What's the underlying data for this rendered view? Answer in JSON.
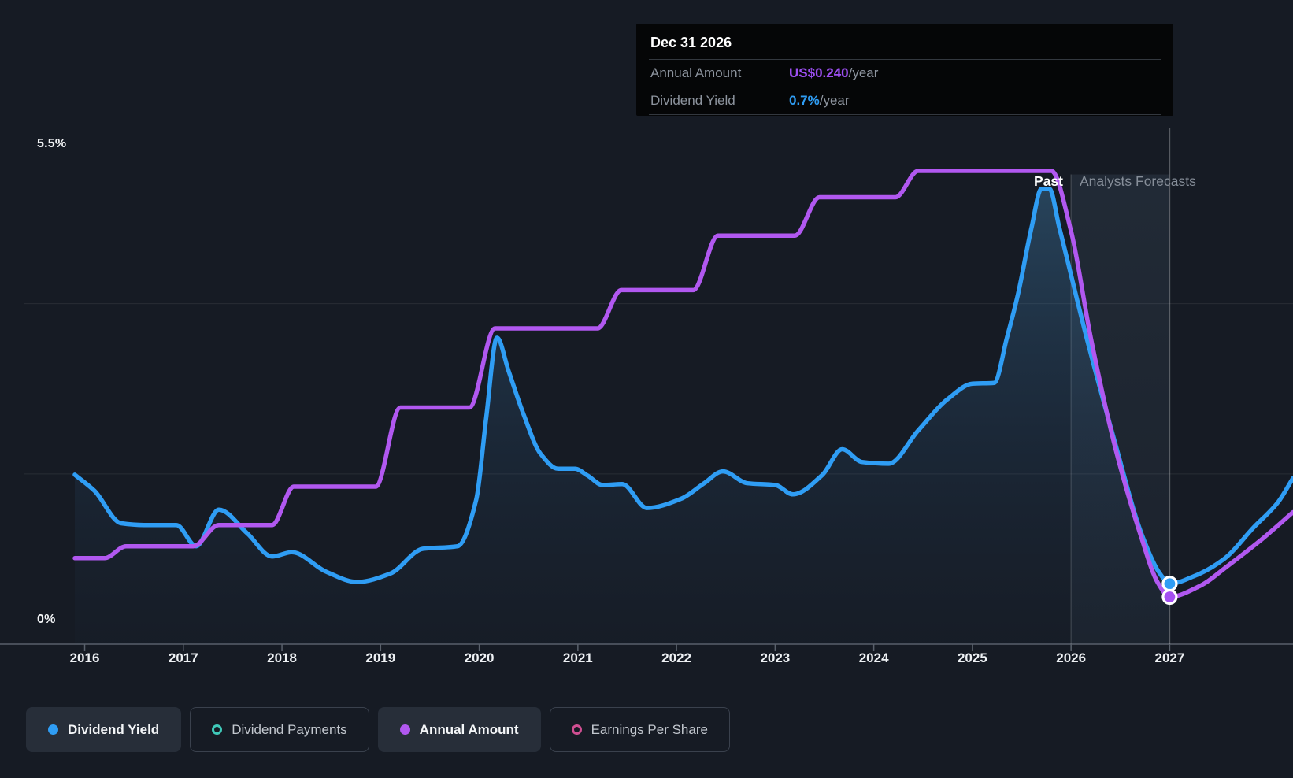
{
  "colors": {
    "background": "#161b24",
    "dividend_yield_line": "#2f9df4",
    "annual_amount_line": "#b158f0",
    "dividend_payments_marker": "#3fc9b9",
    "earnings_per_share_marker": "#d04f92",
    "tooltip_annual_amount_value": "#9d4ff2",
    "tooltip_dividend_yield_value": "#2f9df4",
    "area_fill_base": "#4992c6",
    "axis_line": "#59606b",
    "muted_text": "#8d949e"
  },
  "tooltip": {
    "title": "Dec 31 2026",
    "rows": [
      {
        "label": "Annual Amount",
        "value": "US$0.240",
        "suffix": "/year",
        "value_color": "#9d4ff2"
      },
      {
        "label": "Dividend Yield",
        "value": "0.7%",
        "suffix": "/year",
        "value_color": "#2f9df4"
      }
    ]
  },
  "annotations": {
    "past_label": "Past",
    "forecast_label": "Analysts Forecasts"
  },
  "axis": {
    "y_max_label": "5.5%",
    "y_zero_label": "0%"
  },
  "legend": {
    "items": [
      {
        "label": "Dividend Yield",
        "color": "#2f9df4",
        "marker": "filled",
        "active": true
      },
      {
        "label": "Dividend Payments",
        "color": "#3fc9b9",
        "marker": "ring",
        "active": false
      },
      {
        "label": "Annual Amount",
        "color": "#b158f0",
        "marker": "filled",
        "active": true
      },
      {
        "label": "Earnings Per Share",
        "color": "#d04f92",
        "marker": "ring",
        "active": false
      }
    ]
  },
  "chart_data": {
    "type": "line",
    "x_ticks": [
      2016,
      2017,
      2018,
      2019,
      2020,
      2021,
      2022,
      2023,
      2024,
      2025,
      2026,
      2027
    ],
    "xlim": [
      2015.9,
      2028.25
    ],
    "ylim": [
      0,
      6.06
    ],
    "y_gridlines": [
      {
        "pct": 5.5,
        "strong": true
      },
      {
        "pct": 4.0,
        "strong": false
      },
      {
        "pct": 2.0,
        "strong": false
      }
    ],
    "y_axis_labels": [
      {
        "pct": 5.5,
        "label": "5.5%"
      },
      {
        "pct": 0.0,
        "label": "0%"
      }
    ],
    "past_until_x": 2026.0,
    "hover_x": 2027.0,
    "legend_position": "bottom",
    "grid": true,
    "series": [
      {
        "name": "Dividend Yield",
        "unit": "%",
        "color": "#2f9df4",
        "area_fill": true,
        "points": [
          [
            2015.9,
            1.99
          ],
          [
            2016.1,
            1.8
          ],
          [
            2016.37,
            1.42
          ],
          [
            2016.6,
            1.4
          ],
          [
            2016.93,
            1.4
          ],
          [
            2017.13,
            1.15
          ],
          [
            2017.36,
            1.58
          ],
          [
            2017.65,
            1.3
          ],
          [
            2017.9,
            1.03
          ],
          [
            2018.1,
            1.08
          ],
          [
            2018.45,
            0.85
          ],
          [
            2018.76,
            0.73
          ],
          [
            2019.1,
            0.83
          ],
          [
            2019.43,
            1.12
          ],
          [
            2019.78,
            1.15
          ],
          [
            2019.97,
            1.7
          ],
          [
            2020.07,
            2.65
          ],
          [
            2020.18,
            3.6
          ],
          [
            2020.3,
            3.2
          ],
          [
            2020.45,
            2.7
          ],
          [
            2020.62,
            2.24
          ],
          [
            2020.8,
            2.06
          ],
          [
            2020.97,
            2.06
          ],
          [
            2021.1,
            1.98
          ],
          [
            2021.25,
            1.87
          ],
          [
            2021.45,
            1.88
          ],
          [
            2021.7,
            1.6
          ],
          [
            2022.05,
            1.71
          ],
          [
            2022.28,
            1.89
          ],
          [
            2022.47,
            2.03
          ],
          [
            2022.72,
            1.89
          ],
          [
            2023.0,
            1.87
          ],
          [
            2023.18,
            1.76
          ],
          [
            2023.48,
            1.99
          ],
          [
            2023.68,
            2.29
          ],
          [
            2023.88,
            2.14
          ],
          [
            2024.15,
            2.12
          ],
          [
            2024.45,
            2.51
          ],
          [
            2024.75,
            2.88
          ],
          [
            2025.0,
            3.06
          ],
          [
            2025.22,
            3.07
          ],
          [
            2025.35,
            3.6
          ],
          [
            2025.46,
            4.1
          ],
          [
            2025.6,
            4.9
          ],
          [
            2025.7,
            5.35
          ],
          [
            2025.78,
            5.35
          ],
          [
            2025.88,
            4.9
          ],
          [
            2026.16,
            3.59
          ],
          [
            2026.44,
            2.39
          ],
          [
            2026.72,
            1.28
          ],
          [
            2026.9,
            0.83
          ],
          [
            2027.0,
            0.71
          ],
          [
            2027.25,
            0.8
          ],
          [
            2027.55,
            1.0
          ],
          [
            2027.85,
            1.37
          ],
          [
            2028.1,
            1.67
          ],
          [
            2028.25,
            1.95
          ]
        ]
      },
      {
        "name": "Annual Amount",
        "unit": "plotted on same scale, US$/year shown in tooltip",
        "color": "#b158f0",
        "area_fill": false,
        "points": [
          [
            2015.9,
            1.01
          ],
          [
            2016.2,
            1.01
          ],
          [
            2016.42,
            1.15
          ],
          [
            2017.1,
            1.15
          ],
          [
            2017.36,
            1.4
          ],
          [
            2017.9,
            1.4
          ],
          [
            2018.12,
            1.85
          ],
          [
            2018.95,
            1.85
          ],
          [
            2019.2,
            2.78
          ],
          [
            2019.9,
            2.78
          ],
          [
            2020.16,
            3.71
          ],
          [
            2021.2,
            3.71
          ],
          [
            2021.44,
            4.16
          ],
          [
            2022.17,
            4.16
          ],
          [
            2022.42,
            4.8
          ],
          [
            2023.2,
            4.8
          ],
          [
            2023.45,
            5.25
          ],
          [
            2024.22,
            5.25
          ],
          [
            2024.45,
            5.56
          ],
          [
            2025.8,
            5.56
          ],
          [
            2026.0,
            4.85
          ],
          [
            2026.2,
            3.6
          ],
          [
            2026.45,
            2.3
          ],
          [
            2026.7,
            1.3
          ],
          [
            2026.88,
            0.72
          ],
          [
            2027.0,
            0.555
          ],
          [
            2027.3,
            0.68
          ],
          [
            2027.6,
            0.93
          ],
          [
            2027.9,
            1.2
          ],
          [
            2028.25,
            1.55
          ]
        ]
      }
    ],
    "markers": [
      {
        "series": "Dividend Yield",
        "x": 2027.0,
        "y": 0.71,
        "color": "#2f9df4"
      },
      {
        "series": "Annual Amount",
        "x": 2027.0,
        "y": 0.555,
        "color": "#a44ff2"
      }
    ]
  }
}
